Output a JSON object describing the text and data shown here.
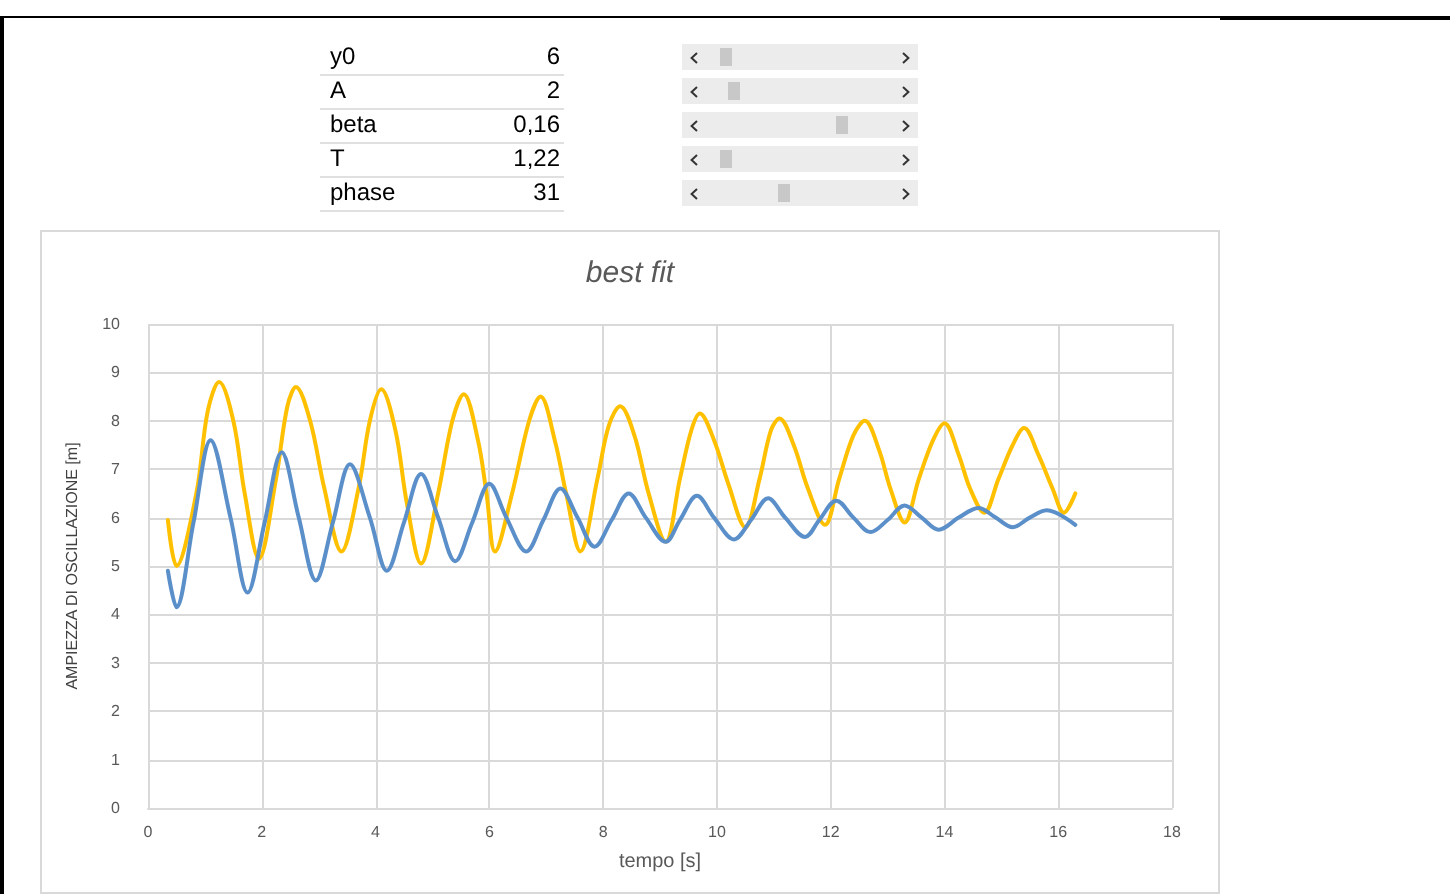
{
  "chart_data": {
    "type": "line",
    "title": "best fit",
    "xlabel": "tempo [s]",
    "ylabel": "AMPIEZZA DI OSCILLAZIONE [m]",
    "annotations": [
      "y0",
      "6",
      "A",
      "2",
      "beta",
      "0,16",
      "T",
      "1,22",
      "phase",
      "31"
    ],
    "xlim": [
      0,
      18
    ],
    "xticks": [
      0,
      2,
      4,
      6,
      8,
      10,
      12,
      14,
      16,
      18
    ],
    "ylim": [
      0,
      10
    ],
    "yticks": [
      0,
      1,
      2,
      3,
      4,
      5,
      6,
      7,
      8,
      9,
      10
    ],
    "grid": true,
    "marker": "none",
    "line_style": "solid",
    "series": [
      {
        "color": "#ffc000",
        "x": [
          0.35,
          0.5,
          0.85,
          1.05,
          1.25,
          1.5,
          1.7,
          1.95,
          2.25,
          2.45,
          2.6,
          2.85,
          3.1,
          3.4,
          3.7,
          3.9,
          4.1,
          4.35,
          4.55,
          4.8,
          5.1,
          5.35,
          5.55,
          5.8,
          5.95,
          6.1,
          6.4,
          6.7,
          6.9,
          7.15,
          7.35,
          7.6,
          7.9,
          8.1,
          8.3,
          8.55,
          8.8,
          9.1,
          9.35,
          9.55,
          9.7,
          9.95,
          10.2,
          10.5,
          10.75,
          10.95,
          11.1,
          11.35,
          11.6,
          11.9,
          12.15,
          12.4,
          12.6,
          12.85,
          13.05,
          13.3,
          13.55,
          13.8,
          14.0,
          14.25,
          14.45,
          14.7,
          14.95,
          15.2,
          15.4,
          15.65,
          15.9,
          16.1,
          16.3
        ],
        "values": [
          5.95,
          5.0,
          6.5,
          8.2,
          8.8,
          8.0,
          6.5,
          5.15,
          6.8,
          8.3,
          8.7,
          8.0,
          6.6,
          5.3,
          6.6,
          8.0,
          8.65,
          7.8,
          6.3,
          5.05,
          6.5,
          8.0,
          8.55,
          7.6,
          6.5,
          5.3,
          6.5,
          8.0,
          8.5,
          7.6,
          6.5,
          5.3,
          6.8,
          7.9,
          8.3,
          7.7,
          6.5,
          5.5,
          6.8,
          7.8,
          8.15,
          7.6,
          6.7,
          5.8,
          6.8,
          7.8,
          8.05,
          7.5,
          6.6,
          5.85,
          6.8,
          7.7,
          8.0,
          7.4,
          6.6,
          5.9,
          6.8,
          7.6,
          7.95,
          7.3,
          6.6,
          6.1,
          6.8,
          7.5,
          7.85,
          7.3,
          6.6,
          6.1,
          6.5
        ]
      },
      {
        "color": "#5b8fc9",
        "x": [
          0.35,
          0.5,
          0.8,
          1.1,
          1.45,
          1.75,
          2.05,
          2.35,
          2.65,
          2.95,
          3.25,
          3.55,
          3.9,
          4.2,
          4.5,
          4.8,
          5.1,
          5.4,
          5.7,
          6.0,
          6.3,
          6.65,
          6.95,
          7.25,
          7.55,
          7.85,
          8.15,
          8.45,
          8.75,
          9.1,
          9.35,
          9.65,
          9.95,
          10.3,
          10.6,
          10.9,
          11.2,
          11.55,
          11.8,
          12.1,
          12.4,
          12.7,
          13.0,
          13.3,
          13.6,
          13.9,
          14.25,
          14.6,
          14.9,
          15.2,
          15.5,
          15.8,
          16.3
        ],
        "values": [
          4.9,
          4.15,
          5.9,
          7.6,
          6.0,
          4.45,
          5.9,
          7.35,
          6.0,
          4.7,
          5.9,
          7.1,
          6.0,
          4.9,
          5.9,
          6.9,
          6.0,
          5.1,
          5.9,
          6.7,
          6.0,
          5.3,
          5.95,
          6.6,
          6.0,
          5.4,
          5.95,
          6.5,
          6.0,
          5.5,
          5.95,
          6.45,
          6.0,
          5.55,
          5.95,
          6.4,
          6.0,
          5.6,
          5.95,
          6.35,
          6.0,
          5.7,
          5.95,
          6.25,
          6.0,
          5.75,
          6.0,
          6.2,
          6.0,
          5.8,
          6.0,
          6.15,
          5.85
        ]
      }
    ]
  }
}
